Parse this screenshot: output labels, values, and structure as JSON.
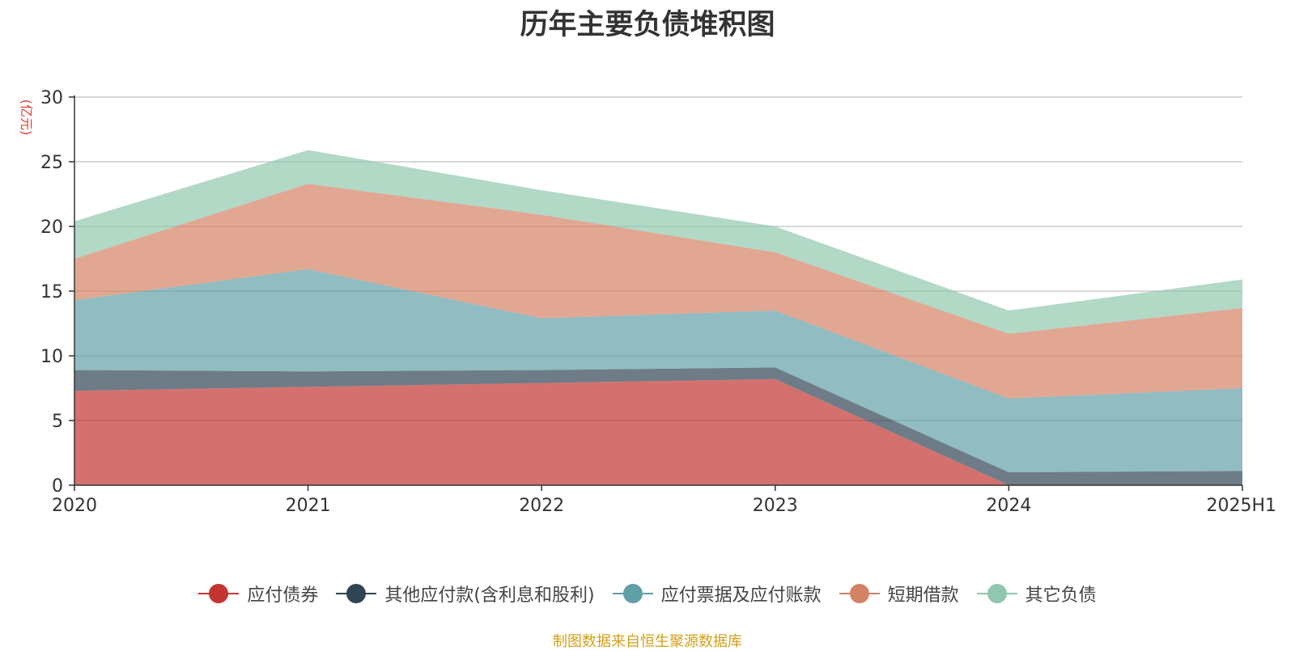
{
  "chart_data": {
    "type": "area",
    "stacked": true,
    "title": "历年主要负债堆积图",
    "unit_label": "(亿元)",
    "categories": [
      "2020",
      "2021",
      "2022",
      "2023",
      "2024",
      "2025H1"
    ],
    "ylim": [
      0,
      30
    ],
    "yticks": [
      0,
      5,
      10,
      15,
      20,
      25,
      30
    ],
    "grid": true,
    "legend_position": "bottom",
    "series": [
      {
        "name": "应付债券",
        "color": "#c23531",
        "values": [
          7.3,
          7.6,
          7.9,
          8.2,
          0.0,
          0.0
        ]
      },
      {
        "name": "其他应付款(含利息和股利)",
        "color": "#2f4554",
        "values": [
          1.6,
          1.2,
          1.0,
          0.9,
          1.0,
          1.1
        ]
      },
      {
        "name": "应付票据及应付账款",
        "color": "#61a0a8",
        "values": [
          5.4,
          7.9,
          4.0,
          4.4,
          5.7,
          6.4
        ]
      },
      {
        "name": "短期借款",
        "color": "#d48265",
        "values": [
          3.2,
          6.6,
          8.0,
          4.5,
          5.0,
          6.2
        ]
      },
      {
        "name": "其它负债",
        "color": "#91c7ae",
        "values": [
          2.9,
          2.6,
          1.9,
          2.0,
          1.8,
          2.2
        ]
      }
    ]
  },
  "source_note": "制图数据来自恒生聚源数据库"
}
